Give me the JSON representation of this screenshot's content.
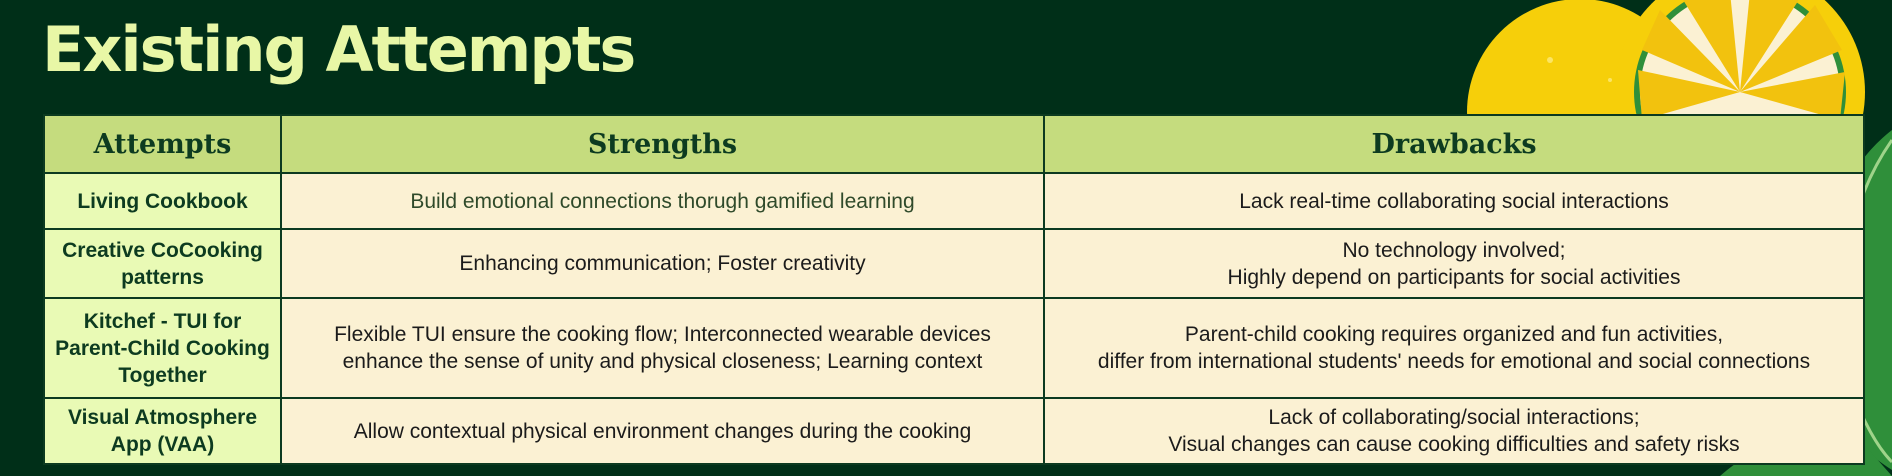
{
  "page": {
    "title": "Existing Attempts"
  },
  "table": {
    "headers": [
      "Attempts",
      "Strengths",
      "Drawbacks"
    ],
    "rows": [
      {
        "attempt": "Living Cookbook",
        "strengths": [
          "Build emotional connections thorugh gamified learning"
        ],
        "drawbacks": [
          "Lack real-time collaborating social interactions"
        ]
      },
      {
        "attempt": "Creative CoCooking patterns",
        "strengths": [
          "Enhancing communication; Foster creativity"
        ],
        "drawbacks": [
          "No technology involved;",
          "Highly depend on participants for social activities"
        ]
      },
      {
        "attempt": "Kitchef - TUI for Parent-Child Cooking Together",
        "strengths": [
          "Flexible TUI ensure the cooking flow; Interconnected wearable devices",
          "enhance the sense of unity and physical closeness; Learning context"
        ],
        "drawbacks": [
          "Parent-child cooking requires organized and fun activities,",
          "differ from international students' needs for emotional and social connections"
        ]
      },
      {
        "attempt": "Visual Atmosphere App (VAA)",
        "strengths": [
          "Allow contextual physical environment changes during the cooking"
        ],
        "drawbacks": [
          "Lack of collaborating/social interactions;",
          "Visual changes can cause cooking difficulties and safety risks"
        ]
      }
    ]
  },
  "colors": {
    "background": "#002f18",
    "title": "#e8f7a6",
    "header_fill": "#c5dc7e",
    "attempt_fill": "#e9fab5",
    "cell_fill": "#fbf1d3",
    "lemon": "#f6cf0a",
    "leaf": "#2f8f3a"
  },
  "decorations": [
    "lemon-icon",
    "lemon-slice-icon",
    "leaf-icon"
  ]
}
